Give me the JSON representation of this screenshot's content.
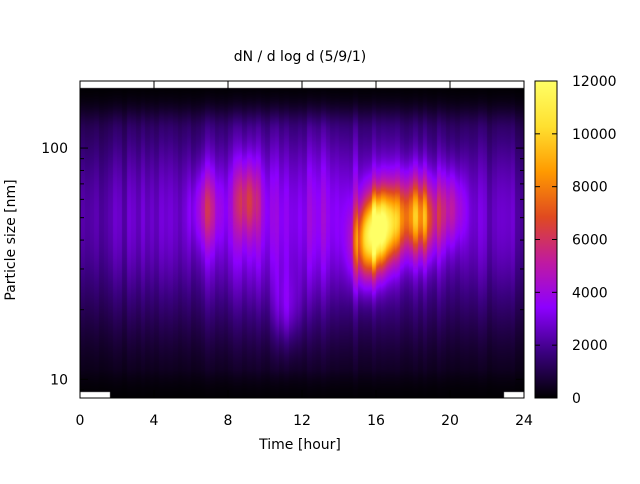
{
  "chart_data": {
    "type": "heatmap",
    "title": "dN / d log d (5/9/1)",
    "xlabel": "Time [hour]",
    "ylabel": "Particle size [nm]",
    "xlim": [
      0,
      24
    ],
    "ylim": [
      8.3,
      195
    ],
    "yscale": "log",
    "x_ticks": [
      0,
      4,
      8,
      12,
      16,
      20,
      24
    ],
    "y_ticks": [
      10,
      100
    ],
    "colorbar": {
      "range": [
        0,
        12000
      ],
      "ticks": [
        0,
        2000,
        4000,
        6000,
        8000,
        10000,
        12000
      ],
      "colormap": [
        "#000000",
        "#3a007f",
        "#8d00ff",
        "#c01aa0",
        "#e04a20",
        "#ff9a00",
        "#ffe030",
        "#ffff66"
      ]
    },
    "hotspots": [
      {
        "time": 16.0,
        "size_nm": 45,
        "value": 10500
      },
      {
        "time": 15.4,
        "size_nm": 38,
        "value": 8200
      },
      {
        "time": 16.8,
        "size_nm": 48,
        "value": 8000
      },
      {
        "time": 18.6,
        "size_nm": 50,
        "value": 7500
      },
      {
        "time": 17.8,
        "size_nm": 52,
        "value": 6800
      },
      {
        "time": 20.0,
        "size_nm": 55,
        "value": 5600
      },
      {
        "time": 9.0,
        "size_nm": 60,
        "value": 5600
      },
      {
        "time": 6.8,
        "size_nm": 55,
        "value": 5200
      },
      {
        "time": 11.2,
        "size_nm": 20,
        "value": 4500
      }
    ]
  }
}
